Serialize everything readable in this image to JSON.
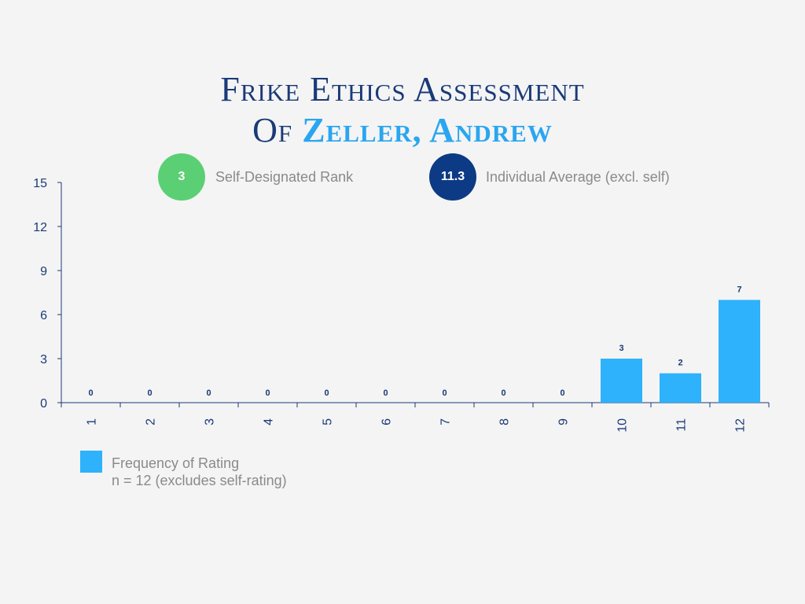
{
  "title": {
    "line1": "Frike Ethics Assessment",
    "line2_prefix": "Of",
    "line2_name": "Zeller, Andrew"
  },
  "badges": [
    {
      "value": "3",
      "label": "Self-Designated Rank",
      "color": "#5bcf74"
    },
    {
      "value": "11.3",
      "label": "Individual Average (excl. self)",
      "color": "#0d3a84"
    }
  ],
  "legend": {
    "label": "Frequency of Rating",
    "note": "n = 12 (excludes self-rating)"
  },
  "colors": {
    "bar": "#2db2fb",
    "axis": "#1a3a78",
    "data_label": "#1a3a78"
  },
  "chart_data": {
    "type": "bar",
    "categories": [
      "1",
      "2",
      "3",
      "4",
      "5",
      "6",
      "7",
      "8",
      "9",
      "10",
      "11",
      "12"
    ],
    "values": [
      0,
      0,
      0,
      0,
      0,
      0,
      0,
      0,
      0,
      3,
      2,
      7
    ],
    "ylim": [
      0,
      15
    ],
    "yticks": [
      0,
      3,
      6,
      9,
      12,
      15
    ],
    "xlabel": "",
    "ylabel": "",
    "grid": false,
    "legend_position": "bottom-left",
    "series": [
      {
        "name": "Frequency of Rating",
        "values": [
          0,
          0,
          0,
          0,
          0,
          0,
          0,
          0,
          0,
          3,
          2,
          7
        ]
      }
    ]
  }
}
